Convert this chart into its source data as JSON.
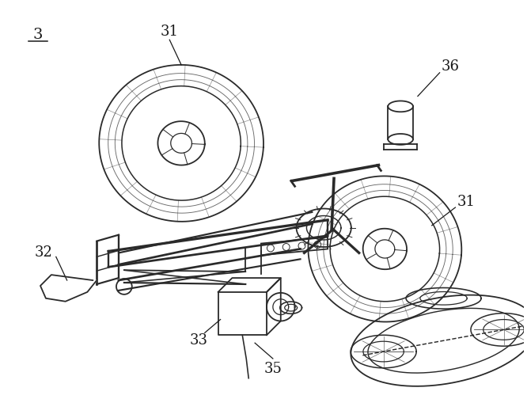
{
  "bg_color": "#ffffff",
  "line_color": "#2a2a2a",
  "label_color": "#1a1a1a",
  "figsize": [
    6.66,
    5.28
  ],
  "dpi": 100
}
